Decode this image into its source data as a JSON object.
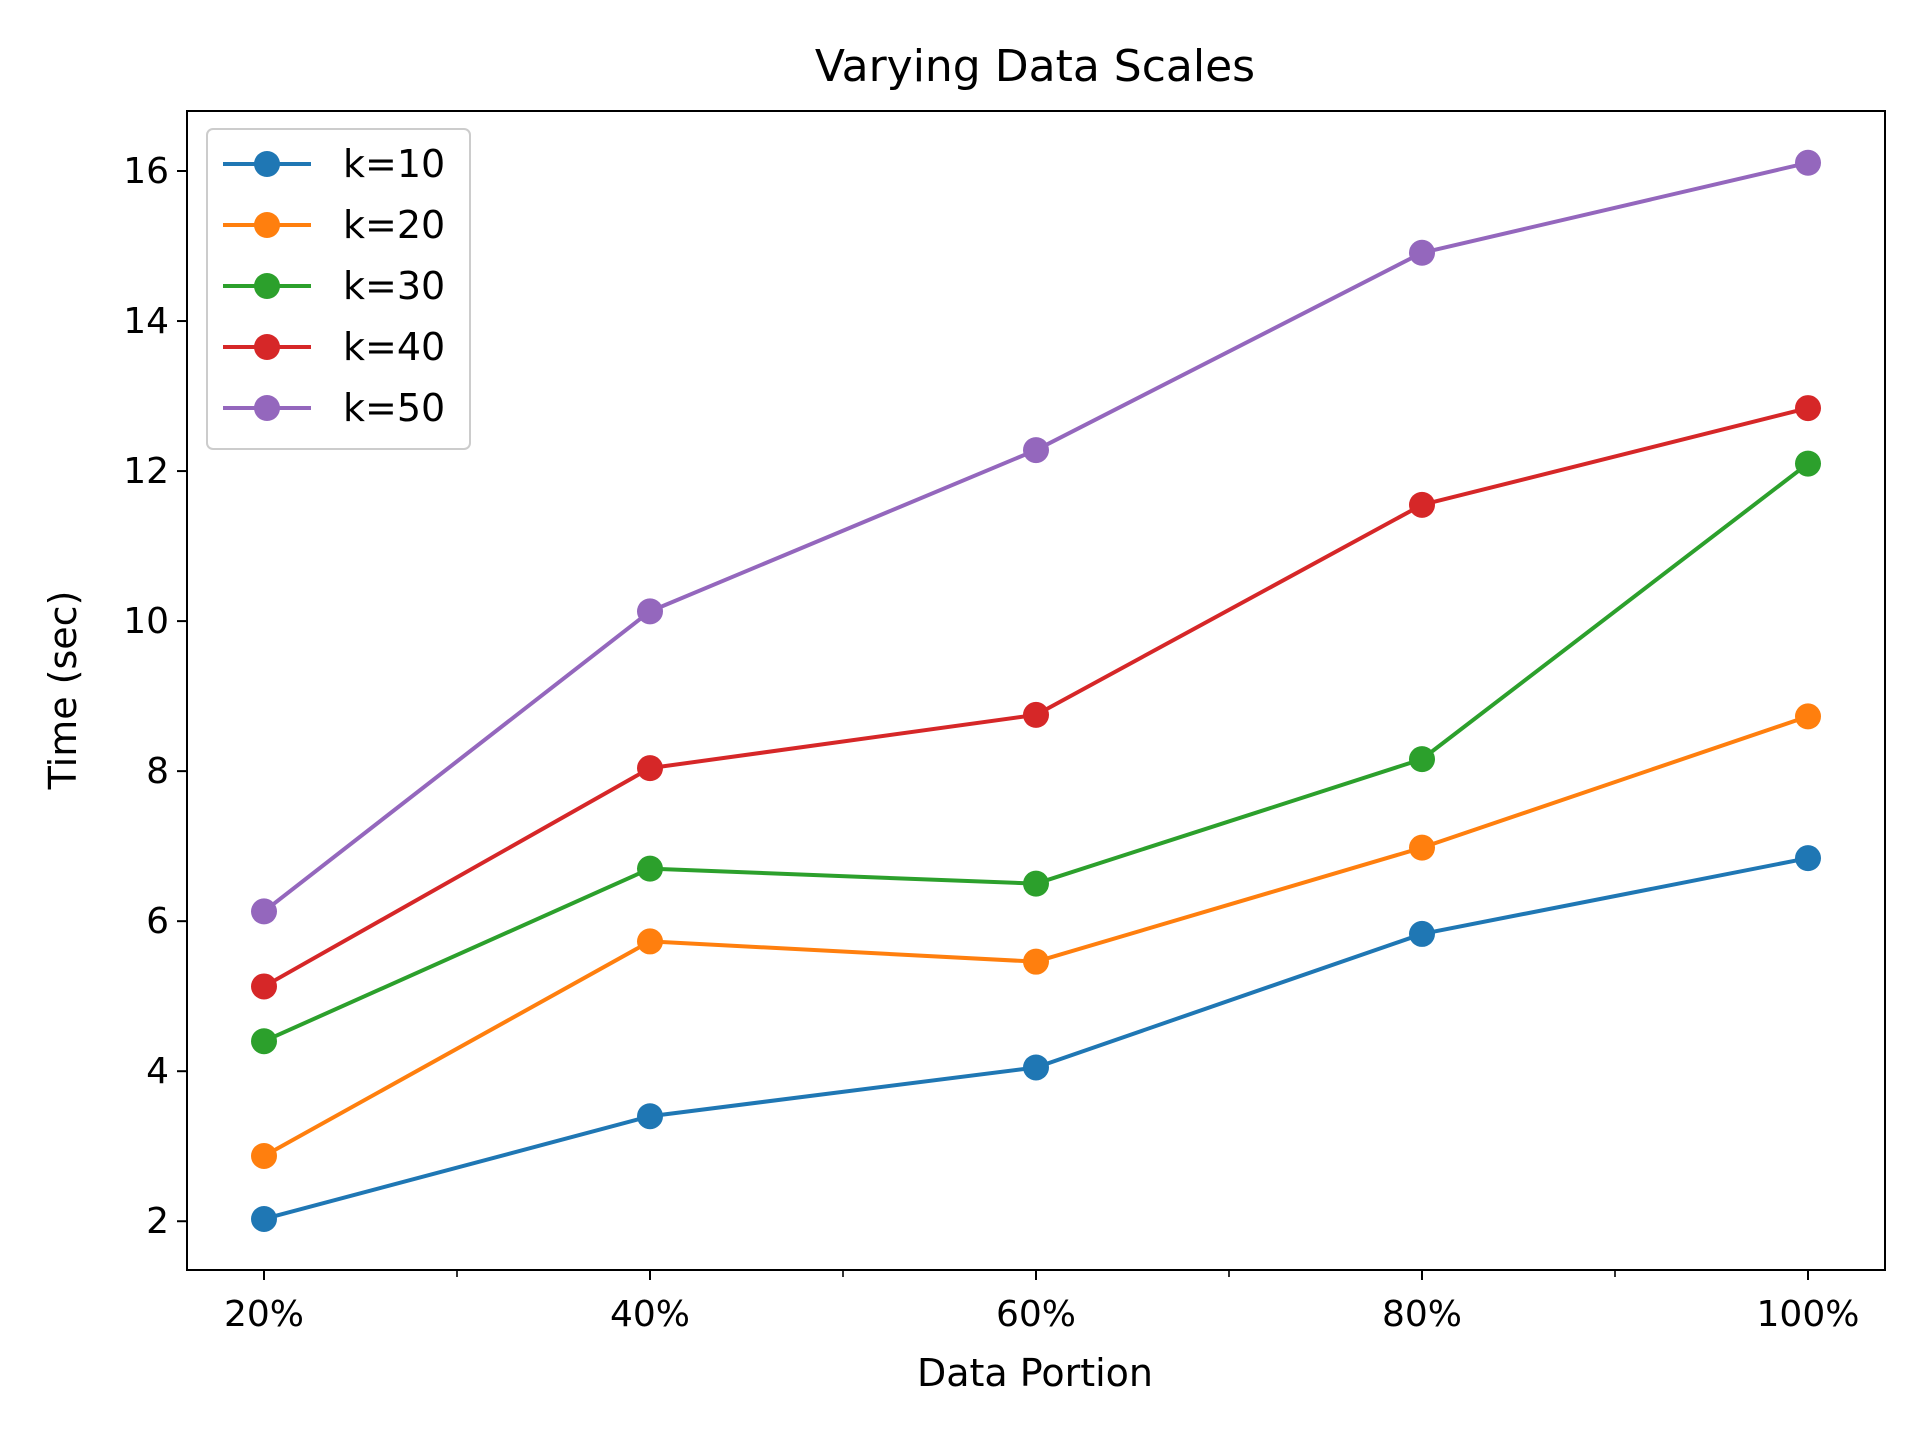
{
  "chart_data": {
    "type": "line",
    "title": "Varying Data Scales",
    "xlabel": "Data Portion",
    "ylabel": "Time (sec)",
    "categories": [
      "20%",
      "40%",
      "60%",
      "80%",
      "100%"
    ],
    "minor_x_ticks": [
      30,
      50,
      70,
      90
    ],
    "ylim": [
      1.35,
      16.8
    ],
    "yticks": [
      2,
      4,
      6,
      8,
      10,
      12,
      14,
      16
    ],
    "grid": false,
    "legend_position": "top-left",
    "series": [
      {
        "name": "k=10",
        "color": "#1f77b4",
        "values": [
          2.03,
          3.4,
          4.05,
          5.83,
          6.84
        ]
      },
      {
        "name": "k=20",
        "color": "#ff7f0e",
        "values": [
          2.87,
          5.73,
          5.46,
          6.98,
          8.73
        ]
      },
      {
        "name": "k=30",
        "color": "#2ca02c",
        "values": [
          4.4,
          6.7,
          6.5,
          8.16,
          12.1
        ]
      },
      {
        "name": "k=40",
        "color": "#d62728",
        "values": [
          5.13,
          8.04,
          8.75,
          11.55,
          12.84
        ]
      },
      {
        "name": "k=50",
        "color": "#9467bd",
        "values": [
          6.13,
          10.13,
          12.28,
          14.91,
          16.11
        ]
      }
    ]
  }
}
